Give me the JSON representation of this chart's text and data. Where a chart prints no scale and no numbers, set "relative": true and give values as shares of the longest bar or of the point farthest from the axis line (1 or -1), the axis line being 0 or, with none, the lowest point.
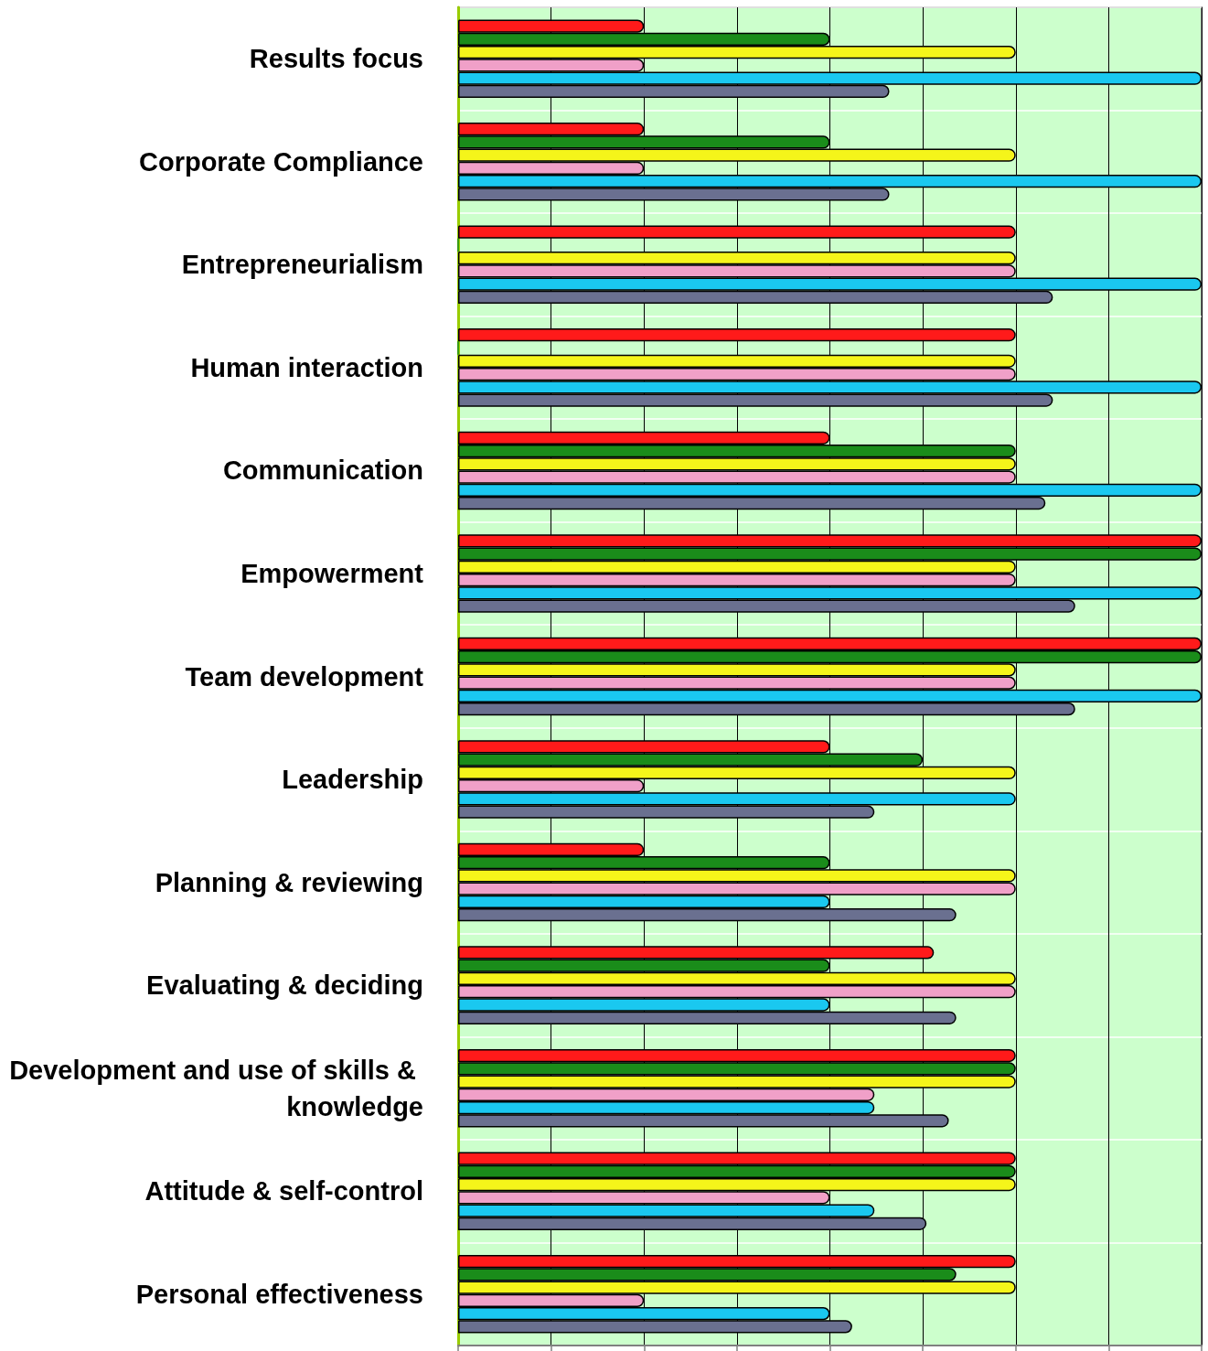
{
  "chart_data": {
    "type": "bar",
    "orientation": "horizontal",
    "relative": true,
    "grid": true,
    "categories": [
      "Results focus",
      "Corporate Compliance",
      "Entrepreneurialism",
      "Human interaction",
      "Communication",
      "Empowerment",
      "Team development",
      "Leadership",
      "Planning & reviewing",
      "Evaluating & deciding",
      "Development and use of skills & knowledge",
      "Attitude & self-control",
      "Personal effectiveness"
    ],
    "series": [
      {
        "color": "#ff1a1a",
        "values": [
          0.25,
          0.25,
          0.75,
          0.75,
          0.5,
          1,
          1,
          0.5,
          0.25,
          0.64,
          0.75,
          0.75,
          0.75
        ]
      },
      {
        "color": "#1a8c1a",
        "values": [
          0.5,
          0.5,
          0,
          0,
          0.75,
          1,
          1,
          0.625,
          0.5,
          0.5,
          0.75,
          0.75,
          0.67
        ]
      },
      {
        "color": "#f5f51a",
        "values": [
          0.75,
          0.75,
          0.75,
          0.75,
          0.75,
          0.75,
          0.75,
          0.75,
          0.75,
          0.75,
          0.75,
          0.75,
          0.75
        ]
      },
      {
        "color": "#f0a0c8",
        "values": [
          0.25,
          0.25,
          0.75,
          0.75,
          0.75,
          0.75,
          0.75,
          0.25,
          0.75,
          0.75,
          0.56,
          0.5,
          0.25
        ]
      },
      {
        "color": "#1ac8f0",
        "values": [
          1,
          1,
          1,
          1,
          1,
          1,
          1,
          0.75,
          0.5,
          0.5,
          0.56,
          0.56,
          0.5
        ]
      },
      {
        "color": "#6a7090",
        "values": [
          0.58,
          0.58,
          0.8,
          0.8,
          0.79,
          0.83,
          0.83,
          0.56,
          0.67,
          0.67,
          0.66,
          0.63,
          0.53
        ]
      }
    ]
  }
}
